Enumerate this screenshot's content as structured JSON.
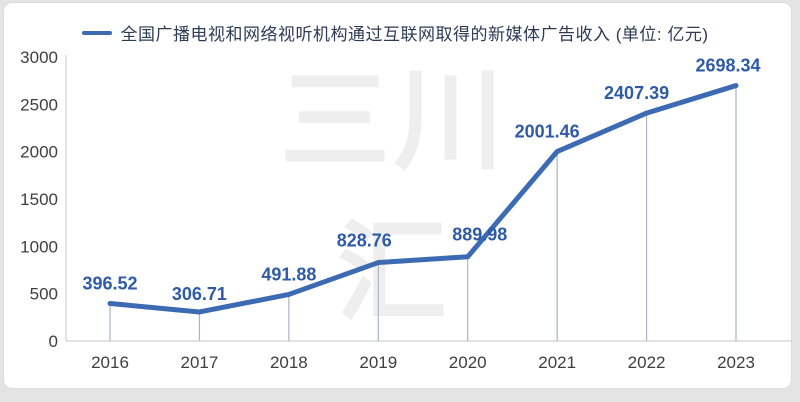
{
  "page": {
    "background": "#e4e4e4",
    "card_background": "#ffffff"
  },
  "legend": {
    "label": "全国广播电视和网络视听机构通过互联网取得的新媒体广告收入 (单位: 亿元)",
    "marker_color": "#3d6bb3"
  },
  "watermark": {
    "line1": "三川",
    "line2": "汇"
  },
  "chart_data": {
    "type": "line",
    "title": "全国广播电视和网络视听机构通过互联网取得的新媒体广告收入 (单位: 亿元)",
    "categories": [
      "2016",
      "2017",
      "2018",
      "2019",
      "2020",
      "2021",
      "2022",
      "2023"
    ],
    "values": [
      396.52,
      306.71,
      491.88,
      828.76,
      889.98,
      2001.46,
      2407.39,
      2698.34
    ],
    "data_labels": [
      "396.52",
      "306.71",
      "491.88",
      "828.76",
      "889.98",
      "2001.46",
      "2407.39",
      "2698.34"
    ],
    "xlabel": "",
    "ylabel": "",
    "ylim": [
      0,
      3000
    ],
    "yticks": [
      0,
      500,
      1000,
      1500,
      2000,
      2500,
      3000
    ],
    "grid": false,
    "legend_position": "top",
    "series_name": "全国广播电视和网络视听机构通过互联网取得的新媒体广告收入",
    "unit": "亿元",
    "colors": {
      "line": "#3d6bb3",
      "data_label": "#2e5aa7",
      "axis_line": "#d9d9d9",
      "tick_text": "#3f3f3f",
      "drop_line": "#aab4c4",
      "watermark": "#eeeeee"
    }
  }
}
